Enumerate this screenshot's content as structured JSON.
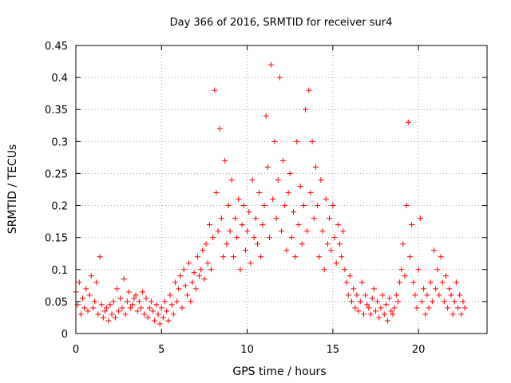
{
  "chart_data": {
    "type": "scatter",
    "title": "Day 366 of 2016, SRMTID for receiver sur4",
    "xlabel": "GPS time / hours",
    "ylabel": "SRMTID / TECUs",
    "xlim": [
      0,
      24
    ],
    "ylim": [
      0,
      0.45
    ],
    "xticks": [
      "0",
      "5",
      "10",
      "15",
      "20"
    ],
    "yticks": [
      "0",
      "0.05",
      "0.1",
      "0.15",
      "0.2",
      "0.25",
      "0.3",
      "0.35",
      "0.4",
      "0.45"
    ],
    "grid": true,
    "marker": "+",
    "series": [
      {
        "name": "SRMTID",
        "color": "#ff0000",
        "x": [
          0.0,
          0.1,
          0.2,
          0.3,
          0.4,
          0.5,
          0.6,
          0.7,
          0.8,
          0.9,
          1.0,
          1.1,
          1.2,
          1.3,
          1.4,
          1.5,
          1.6,
          1.7,
          1.8,
          1.9,
          2.0,
          2.1,
          2.2,
          2.3,
          2.4,
          2.5,
          2.6,
          2.7,
          2.8,
          2.9,
          3.0,
          3.1,
          3.2,
          3.3,
          3.4,
          3.5,
          3.6,
          3.7,
          3.8,
          3.9,
          4.0,
          4.1,
          4.2,
          4.3,
          4.4,
          4.5,
          4.6,
          4.7,
          4.8,
          4.9,
          5.0,
          5.1,
          5.2,
          5.3,
          5.4,
          5.5,
          5.6,
          5.7,
          5.8,
          5.9,
          6.0,
          6.1,
          6.2,
          6.3,
          6.4,
          6.5,
          6.6,
          6.7,
          6.8,
          6.9,
          7.0,
          7.1,
          7.2,
          7.3,
          7.4,
          7.5,
          7.6,
          7.7,
          7.8,
          7.9,
          8.0,
          8.1,
          8.2,
          8.3,
          8.4,
          8.5,
          8.6,
          8.7,
          8.8,
          8.9,
          9.0,
          9.1,
          9.2,
          9.3,
          9.4,
          9.5,
          9.6,
          9.7,
          9.8,
          9.9,
          10.0,
          10.1,
          10.2,
          10.3,
          10.4,
          10.5,
          10.6,
          10.7,
          10.8,
          10.9,
          11.0,
          11.1,
          11.2,
          11.3,
          11.4,
          11.5,
          11.6,
          11.7,
          11.8,
          11.9,
          12.0,
          12.1,
          12.2,
          12.3,
          12.4,
          12.5,
          12.6,
          12.7,
          12.8,
          12.9,
          13.0,
          13.1,
          13.2,
          13.3,
          13.4,
          13.5,
          13.6,
          13.7,
          13.8,
          13.9,
          14.0,
          14.1,
          14.2,
          14.3,
          14.4,
          14.5,
          14.6,
          14.7,
          14.8,
          14.9,
          15.0,
          15.1,
          15.2,
          15.3,
          15.4,
          15.5,
          15.6,
          15.7,
          15.8,
          15.9,
          16.0,
          16.1,
          16.2,
          16.3,
          16.4,
          16.5,
          16.6,
          16.7,
          16.8,
          16.9,
          17.0,
          17.1,
          17.2,
          17.3,
          17.4,
          17.5,
          17.6,
          17.7,
          17.8,
          17.9,
          18.0,
          18.1,
          18.2,
          18.3,
          18.4,
          18.5,
          18.6,
          18.7,
          18.8,
          18.9,
          19.0,
          19.1,
          19.2,
          19.3,
          19.4,
          19.5,
          19.6,
          19.7,
          19.8,
          19.9,
          20.0,
          20.1,
          20.2,
          20.3,
          20.4,
          20.5,
          20.6,
          20.7,
          20.8,
          20.9,
          21.0,
          21.1,
          21.2,
          21.3,
          21.4,
          21.5,
          21.6,
          21.7,
          21.8,
          21.9,
          22.0,
          22.1,
          22.2,
          22.3,
          22.4,
          22.5,
          22.6,
          22.7
        ],
        "y": [
          0.065,
          0.045,
          0.08,
          0.03,
          0.055,
          0.04,
          0.07,
          0.035,
          0.06,
          0.09,
          0.04,
          0.05,
          0.08,
          0.03,
          0.12,
          0.045,
          0.025,
          0.035,
          0.04,
          0.02,
          0.045,
          0.03,
          0.05,
          0.025,
          0.07,
          0.035,
          0.055,
          0.04,
          0.085,
          0.03,
          0.05,
          0.065,
          0.04,
          0.045,
          0.055,
          0.06,
          0.035,
          0.05,
          0.04,
          0.065,
          0.03,
          0.055,
          0.025,
          0.04,
          0.05,
          0.035,
          0.02,
          0.045,
          0.03,
          0.015,
          0.04,
          0.025,
          0.05,
          0.035,
          0.02,
          0.06,
          0.045,
          0.03,
          0.08,
          0.05,
          0.07,
          0.09,
          0.04,
          0.1,
          0.075,
          0.06,
          0.11,
          0.05,
          0.08,
          0.095,
          0.07,
          0.12,
          0.09,
          0.1,
          0.13,
          0.085,
          0.14,
          0.11,
          0.17,
          0.1,
          0.15,
          0.38,
          0.22,
          0.16,
          0.32,
          0.18,
          0.12,
          0.27,
          0.14,
          0.2,
          0.16,
          0.24,
          0.12,
          0.18,
          0.15,
          0.21,
          0.1,
          0.17,
          0.2,
          0.13,
          0.16,
          0.19,
          0.11,
          0.24,
          0.15,
          0.18,
          0.14,
          0.22,
          0.12,
          0.17,
          0.2,
          0.34,
          0.26,
          0.15,
          0.42,
          0.21,
          0.3,
          0.18,
          0.24,
          0.4,
          0.16,
          0.27,
          0.2,
          0.13,
          0.22,
          0.25,
          0.15,
          0.19,
          0.12,
          0.3,
          0.17,
          0.23,
          0.14,
          0.2,
          0.35,
          0.16,
          0.38,
          0.22,
          0.3,
          0.18,
          0.26,
          0.2,
          0.12,
          0.24,
          0.16,
          0.1,
          0.21,
          0.14,
          0.18,
          0.13,
          0.2,
          0.15,
          0.11,
          0.17,
          0.14,
          0.12,
          0.16,
          0.1,
          0.08,
          0.06,
          0.09,
          0.05,
          0.07,
          0.04,
          0.06,
          0.035,
          0.05,
          0.08,
          0.03,
          0.06,
          0.045,
          0.04,
          0.03,
          0.055,
          0.07,
          0.035,
          0.05,
          0.025,
          0.04,
          0.06,
          0.03,
          0.045,
          0.02,
          0.055,
          0.035,
          0.03,
          0.04,
          0.06,
          0.05,
          0.08,
          0.1,
          0.14,
          0.09,
          0.2,
          0.33,
          0.12,
          0.17,
          0.08,
          0.06,
          0.04,
          0.1,
          0.18,
          0.05,
          0.07,
          0.03,
          0.06,
          0.04,
          0.08,
          0.05,
          0.13,
          0.07,
          0.1,
          0.06,
          0.12,
          0.08,
          0.05,
          0.09,
          0.04,
          0.07,
          0.06,
          0.03,
          0.05,
          0.08,
          0.04,
          0.06,
          0.03,
          0.05,
          0.04
        ]
      }
    ]
  }
}
